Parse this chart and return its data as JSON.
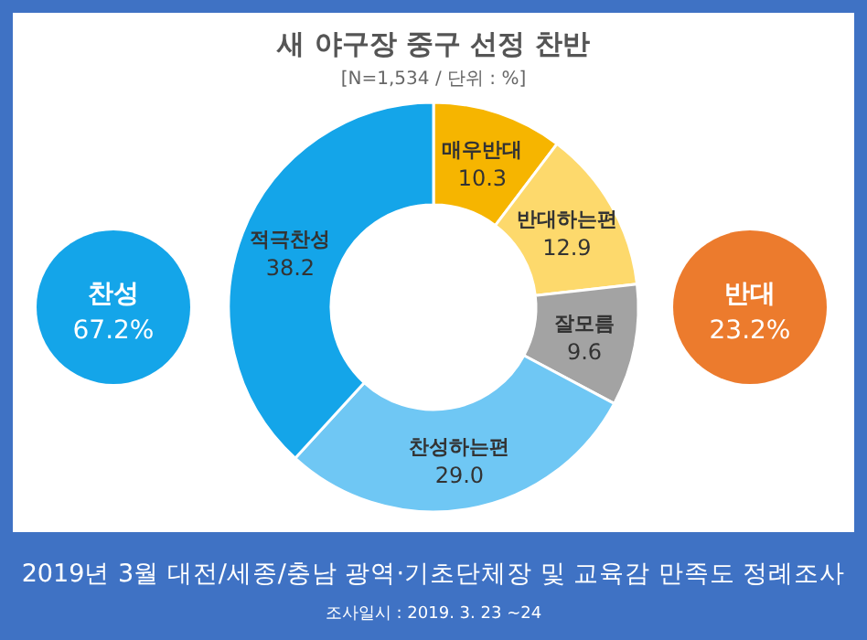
{
  "chart_data": {
    "type": "donut",
    "title": "새 야구장 중구 선정 찬반",
    "subtitle": "[N=1,534 / 단위 : %]",
    "categories": [
      "매우반대",
      "반대하는편",
      "잘모름",
      "찬성하는편",
      "적극찬성"
    ],
    "values": [
      10.3,
      12.9,
      9.6,
      29.0,
      38.2
    ],
    "colors": [
      "#f6b500",
      "#fdd96c",
      "#a3a3a3",
      "#6fc7f4",
      "#14a5e9"
    ],
    "value_labels": [
      "10.3",
      "12.9",
      "9.6",
      "29.0",
      "38.2"
    ],
    "annotations": [
      "찬성\n67.2%",
      "반대\n23.2%",
      "2019년 3월 대전/세종/충남 광역·기초단체장 및 교육감 만족도 정례조사",
      "조사일시 : 2019. 3. 23 ~24"
    ]
  }
}
